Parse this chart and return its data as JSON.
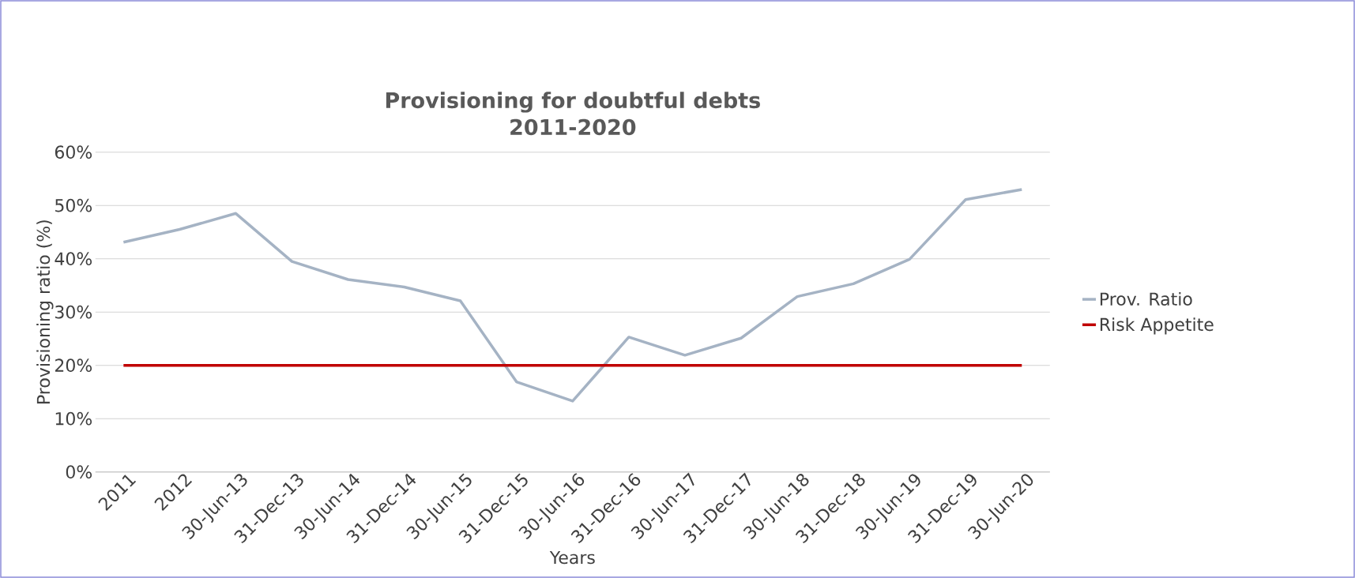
{
  "chart_data": {
    "type": "line",
    "title": "Provisioning for doubtful debts\n2011-2020",
    "xlabel": "Years",
    "ylabel": "Provisioning ratio (%)",
    "categories": [
      "2011",
      "2012",
      "30-Jun-13",
      "31-Dec-13",
      "30-Jun-14",
      "31-Dec-14",
      "30-Jun-15",
      "31-Dec-15",
      "30-Jun-16",
      "31-Dec-16",
      "30-Jun-17",
      "31-Dec-17",
      "30-Jun-18",
      "31-Dec-18",
      "30-Jun-19",
      "31-Dec-19",
      "30-Jun-20"
    ],
    "series": [
      {
        "name": "Prov. Ratio",
        "color": "#a5b3c4",
        "values": [
          43.1,
          45.5,
          48.5,
          39.5,
          36.1,
          34.7,
          32.1,
          16.9,
          13.3,
          25.3,
          21.9,
          25.1,
          32.9,
          35.3,
          39.9,
          51.1,
          53.0
        ]
      },
      {
        "name": "Risk Appetite",
        "color": "#c00000",
        "values": [
          20,
          20,
          20,
          20,
          20,
          20,
          20,
          20,
          20,
          20,
          20,
          20,
          20,
          20,
          20,
          20,
          20
        ]
      }
    ],
    "ylim": [
      0,
      60
    ],
    "yticks": [
      {
        "value": 0,
        "label": "0%"
      },
      {
        "value": 10,
        "label": "10%"
      },
      {
        "value": 20,
        "label": "20%"
      },
      {
        "value": 30,
        "label": "30%"
      },
      {
        "value": 40,
        "label": "40%"
      },
      {
        "value": 50,
        "label": "50%"
      },
      {
        "value": 60,
        "label": "60%"
      }
    ],
    "grid": "y",
    "legend": "right",
    "marker": "none",
    "line_style": "solid"
  }
}
